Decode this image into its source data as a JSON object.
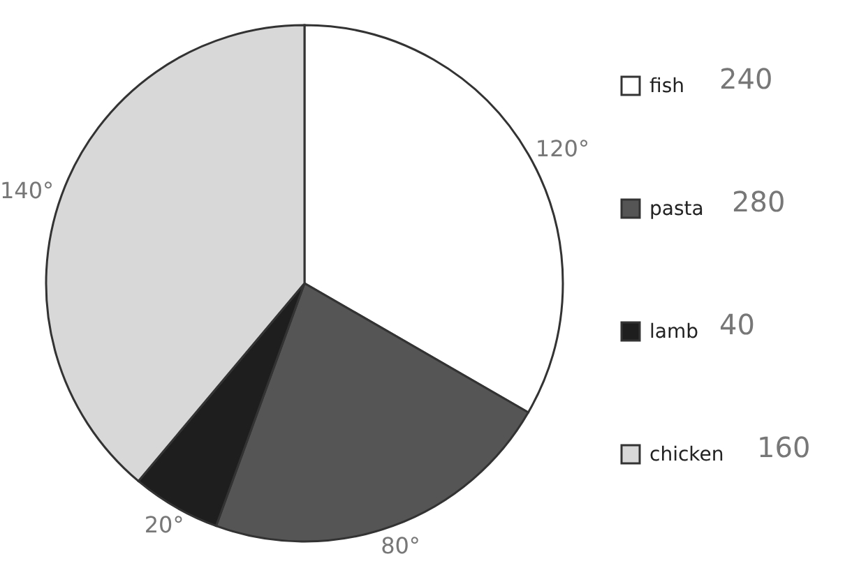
{
  "chart_data": {
    "type": "pie",
    "categories": [
      "fish",
      "pasta",
      "lamb",
      "chicken"
    ],
    "values": [
      120,
      80,
      20,
      140
    ],
    "value_labels": [
      "120°",
      "80°",
      "20°",
      "140°"
    ],
    "colors": [
      "#ffffff",
      "#555555",
      "#1e1e1e",
      "#d8d8d8"
    ],
    "legend": "right",
    "annotations": [
      "240",
      "280",
      "40",
      "160"
    ]
  }
}
